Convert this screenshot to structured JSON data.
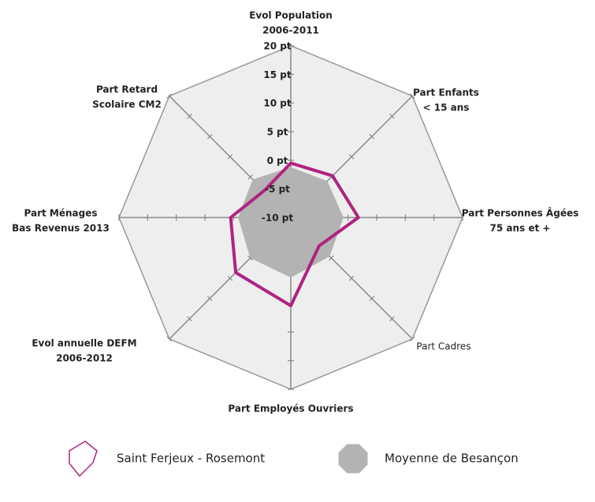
{
  "chart_data": {
    "type": "radar",
    "categories": [
      [
        "Evol Population",
        "2006-2011"
      ],
      [
        "Part Enfants",
        "< 15 ans"
      ],
      [
        "Part Personnes Âgées",
        "75 ans et +"
      ],
      [
        "Part Cadres"
      ],
      [
        "Part Employés Ouvriers"
      ],
      [
        "Evol annuelle DEFM",
        "2006-2012"
      ],
      [
        "Part Ménages",
        "Bas Revenus 2013"
      ],
      [
        "Part Retard",
        "Scolaire CM2"
      ]
    ],
    "rlim": [
      -10,
      20
    ],
    "rticks": [
      {
        "value": -10,
        "label": "-10 pt"
      },
      {
        "value": -5,
        "label": "-5 pt"
      },
      {
        "value": 0,
        "label": "0 pt"
      },
      {
        "value": 5,
        "label": "5 pt"
      },
      {
        "value": 10,
        "label": "10 pt"
      },
      {
        "value": 15,
        "label": "15 pt"
      },
      {
        "value": 20,
        "label": "20 pt"
      }
    ],
    "series": [
      {
        "name": "Saint Ferjeux - Rosemont",
        "color": "#b0237f",
        "style": "line",
        "values": [
          -0.5,
          0.3,
          1.8,
          -3,
          5.4,
          3.6,
          0.5,
          -3.4
        ]
      },
      {
        "name": "Moyenne de Besançon",
        "color": "#b3b3b3",
        "style": "area",
        "values": [
          -1.2,
          -1,
          -0.8,
          -0.4,
          0.5,
          0,
          -0.8,
          -0.6
        ]
      }
    ]
  }
}
